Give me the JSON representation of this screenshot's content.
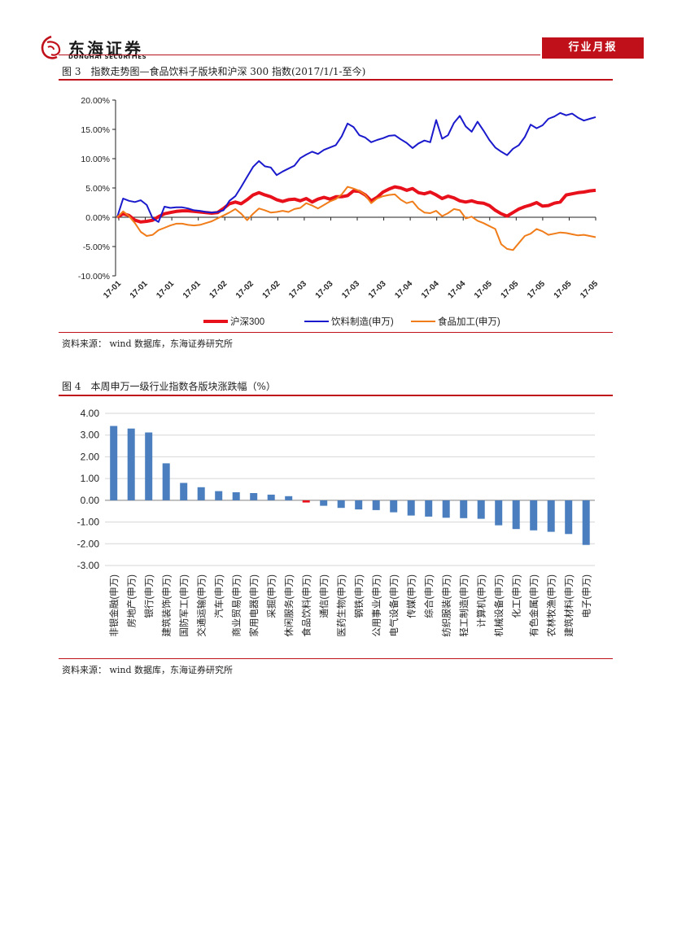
{
  "header": {
    "company_cn": "东海证券",
    "company_en": "DONGHAI SECURITIES",
    "report_type": "行业月报",
    "brand_color": "#c0101a"
  },
  "figure3": {
    "title": "图 3　指数走势图—食品饮料子版块和沪深 300 指数(2017/1/1-至今)",
    "source": "资料来源：  wind 数据库，东海证券研究所"
  },
  "figure4": {
    "title": "图 4　本周申万一级行业指数各版块涨跌幅（%）",
    "source": "资料来源：  wind 数据库，东海证券研究所"
  },
  "chart_data": [
    {
      "type": "line",
      "y_tick_labels": [
        "20.00%",
        "15.00%",
        "10.00%",
        "5.00%",
        "0.00%",
        "-5.00%",
        "-10.00%"
      ],
      "ylim": [
        -10,
        20
      ],
      "x_tick_labels": [
        "17-01",
        "17-01",
        "17-01",
        "17-01",
        "17-02",
        "17-02",
        "17-02",
        "17-03",
        "17-03",
        "17-03",
        "17-03",
        "17-04",
        "17-04",
        "17-04",
        "17-05",
        "17-05",
        "17-05",
        "17-05",
        "17-05"
      ],
      "legend_position": "bottom",
      "series": [
        {
          "name": "沪深300",
          "color": "#e8101a",
          "width": 4,
          "values": [
            0.0,
            0.6,
            0.3,
            -0.5,
            -0.8,
            -0.7,
            -0.5,
            0.1,
            0.6,
            0.8,
            1.0,
            1.1,
            1.1,
            1.0,
            0.9,
            0.8,
            0.7,
            0.8,
            1.5,
            2.3,
            2.6,
            2.3,
            3.0,
            3.8,
            4.2,
            3.8,
            3.5,
            3.0,
            2.7,
            3.0,
            3.1,
            2.8,
            3.2,
            2.6,
            3.1,
            3.4,
            3.1,
            3.5,
            3.5,
            3.7,
            4.5,
            4.4,
            3.8,
            2.8,
            3.4,
            4.3,
            4.8,
            5.2,
            5.0,
            4.6,
            4.9,
            4.2,
            4.0,
            4.3,
            3.8,
            3.2,
            3.6,
            3.3,
            2.8,
            2.6,
            2.8,
            2.5,
            2.4,
            2.0,
            1.2,
            0.6,
            0.2,
            0.8,
            1.4,
            1.8,
            2.1,
            2.5,
            1.9,
            2.0,
            2.4,
            2.6,
            3.8,
            4.0,
            4.2,
            4.3,
            4.5,
            4.6
          ]
        },
        {
          "name": "饮料制造(申万)",
          "color": "#1a1acc",
          "width": 2,
          "values": [
            0.0,
            3.2,
            2.8,
            2.6,
            2.9,
            2.1,
            -0.2,
            -0.8,
            1.8,
            1.6,
            1.7,
            1.7,
            1.5,
            1.2,
            1.1,
            0.9,
            0.8,
            0.9,
            1.2,
            2.8,
            3.6,
            5.2,
            6.9,
            8.6,
            9.6,
            8.7,
            8.5,
            7.2,
            7.8,
            8.3,
            8.8,
            10.1,
            10.7,
            11.2,
            10.8,
            11.5,
            11.9,
            12.3,
            13.8,
            16.0,
            15.4,
            14.0,
            13.6,
            12.8,
            13.2,
            13.5,
            13.9,
            14.0,
            13.3,
            12.7,
            11.8,
            12.6,
            13.1,
            12.8,
            16.6,
            13.4,
            14.0,
            16.1,
            17.3,
            15.5,
            14.6,
            16.3,
            14.8,
            13.2,
            11.9,
            11.2,
            10.6,
            11.7,
            12.3,
            13.7,
            15.8,
            15.2,
            15.7,
            16.8,
            17.2,
            17.8,
            17.4,
            17.7,
            17.0,
            16.5,
            16.8,
            17.1
          ]
        },
        {
          "name": "食品加工(申万)",
          "color": "#f07c1a",
          "width": 2,
          "values": [
            0.0,
            1.0,
            0.2,
            -1.0,
            -2.5,
            -3.2,
            -3.0,
            -2.2,
            -1.8,
            -1.4,
            -1.1,
            -1.1,
            -1.3,
            -1.4,
            -1.3,
            -1.0,
            -0.7,
            -0.2,
            0.3,
            0.8,
            1.4,
            0.6,
            -0.5,
            0.6,
            1.5,
            1.2,
            0.8,
            0.9,
            1.1,
            0.9,
            1.4,
            1.6,
            2.4,
            2.0,
            1.5,
            2.1,
            2.7,
            3.1,
            3.9,
            5.2,
            4.9,
            4.5,
            3.8,
            2.4,
            3.2,
            3.6,
            3.8,
            3.9,
            3.0,
            2.4,
            2.7,
            1.5,
            0.8,
            0.7,
            1.1,
            0.2,
            0.7,
            1.4,
            1.2,
            -0.2,
            0.1,
            -0.6,
            -1.0,
            -1.5,
            -2.0,
            -4.6,
            -5.4,
            -5.6,
            -4.4,
            -3.2,
            -2.8,
            -2.0,
            -2.4,
            -3.0,
            -2.8,
            -2.6,
            -2.7,
            -2.9,
            -3.1,
            -3.0,
            -3.2,
            -3.4
          ]
        }
      ]
    },
    {
      "type": "bar",
      "ylim": [
        -3,
        4
      ],
      "y_tick_labels": [
        "4.00",
        "3.00",
        "2.00",
        "1.00",
        "0.00",
        "-1.00",
        "-2.00",
        "-3.00"
      ],
      "categories": [
        "非银金融(申万)",
        "房地产(申万)",
        "银行(申万)",
        "建筑装饰(申万)",
        "国防军工(申万)",
        "交通运输(申万)",
        "汽车(申万)",
        "商业贸易(申万)",
        "家用电器(申万)",
        "采掘(申万)",
        "休闲服务(申万)",
        "食品饮料(申万)",
        "通信(申万)",
        "医药生物(申万)",
        "钢铁(申万)",
        "公用事业(申万)",
        "电气设备(申万)",
        "传媒(申万)",
        "综合(申万)",
        "纺织服装(申万)",
        "轻工制造(申万)",
        "计算机(申万)",
        "机械设备(申万)",
        "化工(申万)",
        "有色金属(申万)",
        "农林牧渔(申万)",
        "建筑材料(申万)",
        "电子(申万)"
      ],
      "values": [
        3.42,
        3.3,
        3.12,
        1.7,
        0.8,
        0.6,
        0.42,
        0.37,
        0.33,
        0.26,
        0.19,
        -0.1,
        -0.25,
        -0.35,
        -0.42,
        -0.45,
        -0.55,
        -0.7,
        -0.75,
        -0.8,
        -0.82,
        -0.85,
        -1.15,
        -1.32,
        -1.38,
        -1.45,
        -1.55,
        -2.05
      ],
      "colors": {
        "default": "#4a7ebf",
        "highlight": "#e8101a"
      },
      "highlight_category": "食品饮料(申万)"
    }
  ]
}
